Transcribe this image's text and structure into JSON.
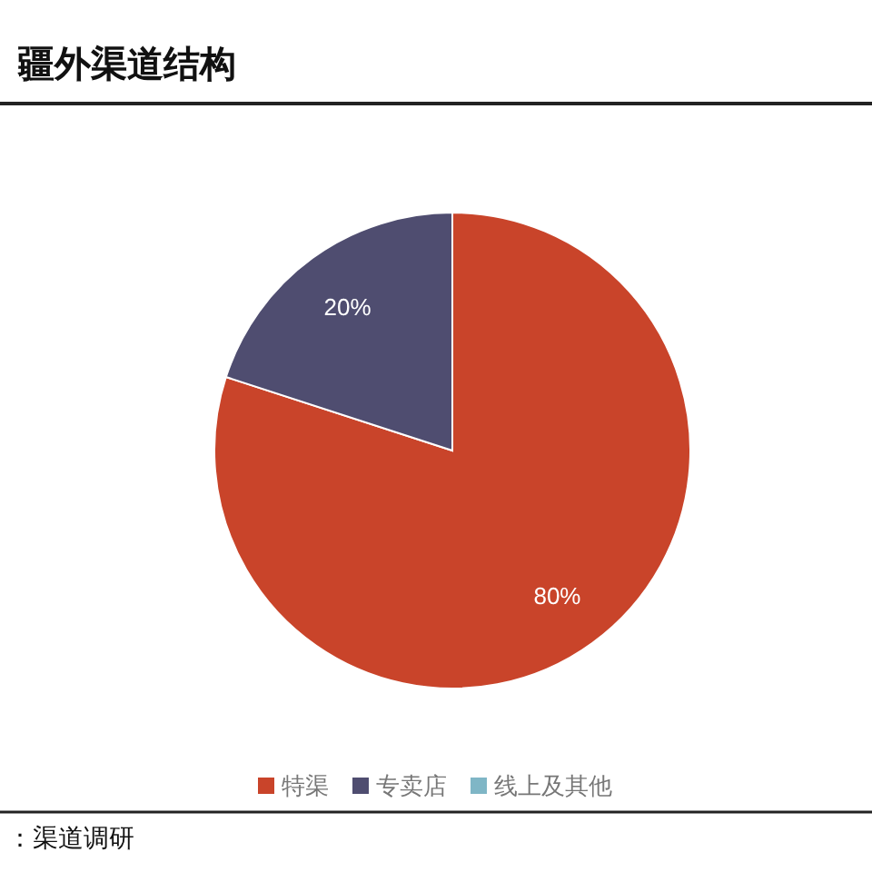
{
  "chart_data": {
    "type": "pie",
    "title": "疆外渠道结构",
    "categories": [
      "特渠",
      "专卖店",
      "线上及其他"
    ],
    "values": [
      80,
      20,
      0
    ],
    "colors": [
      "#c9442a",
      "#4f4d70",
      "#7fb6c6"
    ],
    "value_labels": [
      "80%",
      "20%",
      null
    ],
    "legend": "bottom",
    "annotations": [
      "：渠道调研"
    ]
  }
}
